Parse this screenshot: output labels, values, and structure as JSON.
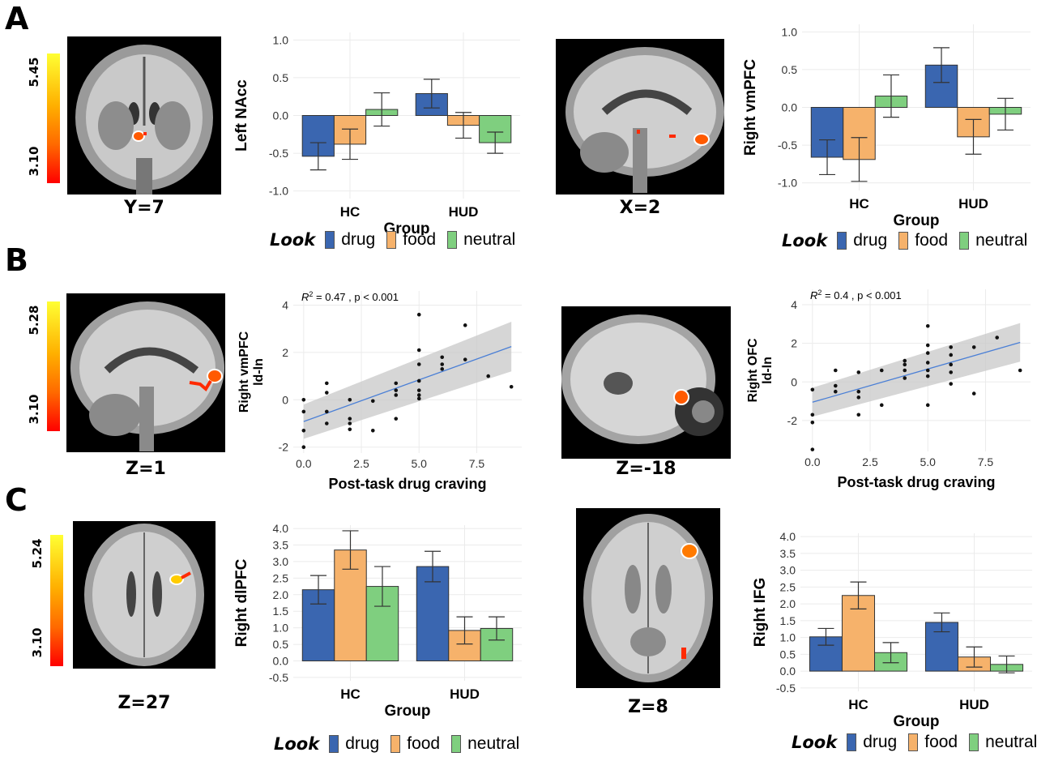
{
  "panels": {
    "a": "A",
    "b": "B",
    "c": "C"
  },
  "brains": {
    "a1": {
      "coord": "Y=7",
      "view": "coronal"
    },
    "a2": {
      "coord": "X=2",
      "view": "sagittal"
    },
    "b1": {
      "coord": "Z=1",
      "view": "sagittal"
    },
    "b2": {
      "coord": "Z=-18",
      "view": "sagittal"
    },
    "c1": {
      "coord": "Z=27",
      "view": "axial"
    },
    "c2": {
      "coord": "Z=8",
      "view": "axial"
    }
  },
  "colorbars": {
    "a": {
      "max": "5.45",
      "min": "3.10"
    },
    "b": {
      "max": "5.28",
      "min": "3.10"
    },
    "c": {
      "max": "5.24",
      "min": "3.10"
    }
  },
  "legend": {
    "title": "Look",
    "items": [
      {
        "label": "drug",
        "color": "#3a66b0"
      },
      {
        "label": "food",
        "color": "#f6b26b"
      },
      {
        "label": "neutral",
        "color": "#7fcf7f"
      }
    ]
  },
  "chart_data": [
    {
      "id": "a1",
      "type": "bar",
      "xlabel": "Group",
      "ylabel": "Left NAcc",
      "categories": [
        "HC",
        "HUD"
      ],
      "ylim": [
        -1.1,
        1.1
      ],
      "yticks": [
        -1.0,
        -0.5,
        0.0,
        0.5,
        1.0
      ],
      "ytick_labels": [
        "-1.0",
        "-0.5",
        "0.0",
        "0.5",
        "1.0"
      ],
      "grid": true,
      "series": [
        {
          "name": "drug",
          "values": [
            -0.54,
            0.29
          ],
          "err": [
            0.18,
            0.19
          ]
        },
        {
          "name": "food",
          "values": [
            -0.38,
            -0.13
          ],
          "err": [
            0.2,
            0.17
          ]
        },
        {
          "name": "neutral",
          "values": [
            0.08,
            -0.36
          ],
          "err": [
            0.22,
            0.14
          ]
        }
      ]
    },
    {
      "id": "a2",
      "type": "bar",
      "xlabel": "Group",
      "ylabel": "Right vmPFC",
      "categories": [
        "HC",
        "HUD"
      ],
      "ylim": [
        -1.1,
        1.1
      ],
      "yticks": [
        -1.0,
        -0.5,
        0.0,
        0.5,
        1.0
      ],
      "ytick_labels": [
        "-1.0",
        "-0.5",
        "0.0",
        "0.5",
        "1.0"
      ],
      "grid": true,
      "series": [
        {
          "name": "drug",
          "values": [
            -0.66,
            0.56
          ],
          "err": [
            0.23,
            0.23
          ]
        },
        {
          "name": "food",
          "values": [
            -0.69,
            -0.39
          ],
          "err": [
            0.29,
            0.23
          ]
        },
        {
          "name": "neutral",
          "values": [
            0.15,
            -0.09
          ],
          "err": [
            0.28,
            0.21
          ]
        }
      ]
    },
    {
      "id": "b1",
      "type": "scatter",
      "xlabel": "Post-task drug craving",
      "ylabel": "Right vmPFC",
      "ylabel2": "ld-ln",
      "annotation": {
        "r2": "0.47",
        "p": "p < 0.001"
      },
      "xlim": [
        -0.45,
        9.45
      ],
      "ylim": [
        -2.25,
        4.6
      ],
      "xticks": [
        0,
        2.5,
        5,
        7.5
      ],
      "xtick_labels": [
        "0.0",
        "2.5",
        "5.0",
        "7.5"
      ],
      "yticks": [
        -2,
        0,
        2,
        4
      ],
      "ytick_labels": [
        "-2",
        "0",
        "2",
        "4"
      ],
      "grid": true,
      "fit": {
        "x": [
          0,
          9
        ],
        "y": [
          -0.92,
          2.25
        ],
        "band_lo": [
          -1.65,
          1.2
        ],
        "band_hi": [
          -0.2,
          3.3
        ]
      },
      "points": [
        [
          0,
          -2.0
        ],
        [
          0,
          -1.3
        ],
        [
          0,
          -0.5
        ],
        [
          0,
          0.0
        ],
        [
          1,
          0.7
        ],
        [
          1,
          0.3
        ],
        [
          1,
          -0.5
        ],
        [
          1,
          -1.0
        ],
        [
          2,
          -0.8
        ],
        [
          2,
          -1.0
        ],
        [
          2,
          -1.25
        ],
        [
          2,
          0.0
        ],
        [
          3,
          -1.3
        ],
        [
          3,
          -0.05
        ],
        [
          4,
          0.7
        ],
        [
          4,
          0.4
        ],
        [
          4,
          0.2
        ],
        [
          4,
          -0.8
        ],
        [
          5,
          3.6
        ],
        [
          5,
          2.1
        ],
        [
          5,
          1.5
        ],
        [
          5,
          0.8
        ],
        [
          5,
          0.4
        ],
        [
          5,
          0.2
        ],
        [
          5,
          0.05
        ],
        [
          6,
          1.8
        ],
        [
          6,
          1.5
        ],
        [
          6,
          1.3
        ],
        [
          7,
          3.15
        ],
        [
          7,
          1.7
        ],
        [
          8,
          1.0
        ],
        [
          9,
          0.55
        ]
      ]
    },
    {
      "id": "b2",
      "type": "scatter",
      "xlabel": "Post-task drug craving",
      "ylabel": "Right OFC",
      "ylabel2": "ld-ln",
      "annotation": {
        "r2": "0.4",
        "p": "p < 0.001"
      },
      "xlim": [
        -0.45,
        9.45
      ],
      "ylim": [
        -3.6,
        4.8
      ],
      "xticks": [
        0,
        2.5,
        5,
        7.5
      ],
      "xtick_labels": [
        "0.0",
        "2.5",
        "5.0",
        "7.5"
      ],
      "yticks": [
        -2,
        0,
        2,
        4
      ],
      "ytick_labels": [
        "-2",
        "0",
        "2",
        "4"
      ],
      "grid": true,
      "fit": {
        "x": [
          0,
          9
        ],
        "y": [
          -1.05,
          2.05
        ],
        "band_lo": [
          -1.8,
          1.05
        ],
        "band_hi": [
          -0.3,
          3.05
        ]
      },
      "points": [
        [
          0,
          -3.5
        ],
        [
          0,
          -2.1
        ],
        [
          0,
          -1.7
        ],
        [
          0,
          -0.4
        ],
        [
          1,
          0.6
        ],
        [
          1,
          -0.2
        ],
        [
          1,
          -0.5
        ],
        [
          2,
          0.5
        ],
        [
          2,
          -0.5
        ],
        [
          2,
          -0.8
        ],
        [
          2,
          -1.7
        ],
        [
          3,
          0.6
        ],
        [
          3,
          -1.2
        ],
        [
          4,
          1.1
        ],
        [
          4,
          0.9
        ],
        [
          4,
          0.6
        ],
        [
          4,
          0.2
        ],
        [
          5,
          2.9
        ],
        [
          5,
          1.9
        ],
        [
          5,
          1.5
        ],
        [
          5,
          1.0
        ],
        [
          5,
          0.6
        ],
        [
          5,
          0.3
        ],
        [
          5,
          -1.2
        ],
        [
          6,
          1.8
        ],
        [
          6,
          1.4
        ],
        [
          6,
          0.9
        ],
        [
          6,
          0.5
        ],
        [
          6,
          -0.1
        ],
        [
          7,
          1.8
        ],
        [
          7,
          -0.6
        ],
        [
          8,
          2.3
        ],
        [
          9,
          0.6
        ]
      ]
    },
    {
      "id": "c1",
      "type": "bar",
      "xlabel": "Group",
      "ylabel": "Right dlPFC",
      "categories": [
        "HC",
        "HUD"
      ],
      "ylim": [
        -0.6,
        4.1
      ],
      "yticks": [
        -0.5,
        0,
        0.5,
        1,
        1.5,
        2,
        2.5,
        3,
        3.5,
        4
      ],
      "ytick_labels": [
        "-0.5",
        "0.0",
        "0.5",
        "1.0",
        "1.5",
        "2.0",
        "2.5",
        "3.0",
        "3.5",
        "4.0"
      ],
      "grid": true,
      "series": [
        {
          "name": "drug",
          "values": [
            2.15,
            2.85
          ],
          "err": [
            0.43,
            0.46
          ]
        },
        {
          "name": "food",
          "values": [
            3.35,
            0.92
          ],
          "err": [
            0.58,
            0.41
          ]
        },
        {
          "name": "neutral",
          "values": [
            2.25,
            0.98
          ],
          "err": [
            0.6,
            0.35
          ]
        }
      ]
    },
    {
      "id": "c2",
      "type": "bar",
      "xlabel": "Group",
      "ylabel": "Right IFG",
      "categories": [
        "HC",
        "HUD"
      ],
      "ylim": [
        -0.6,
        4.1
      ],
      "yticks": [
        -0.5,
        0,
        0.5,
        1,
        1.5,
        2,
        2.5,
        3,
        3.5,
        4
      ],
      "ytick_labels": [
        "-0.5",
        "0.0",
        "0.5",
        "1.0",
        "1.5",
        "2.0",
        "2.5",
        "3.0",
        "3.5",
        "4.0"
      ],
      "grid": true,
      "series": [
        {
          "name": "drug",
          "values": [
            1.02,
            1.45
          ],
          "err": [
            0.25,
            0.28
          ]
        },
        {
          "name": "food",
          "values": [
            2.25,
            0.42
          ],
          "err": [
            0.4,
            0.3
          ]
        },
        {
          "name": "neutral",
          "values": [
            0.55,
            0.2
          ],
          "err": [
            0.3,
            0.25
          ]
        }
      ]
    }
  ]
}
